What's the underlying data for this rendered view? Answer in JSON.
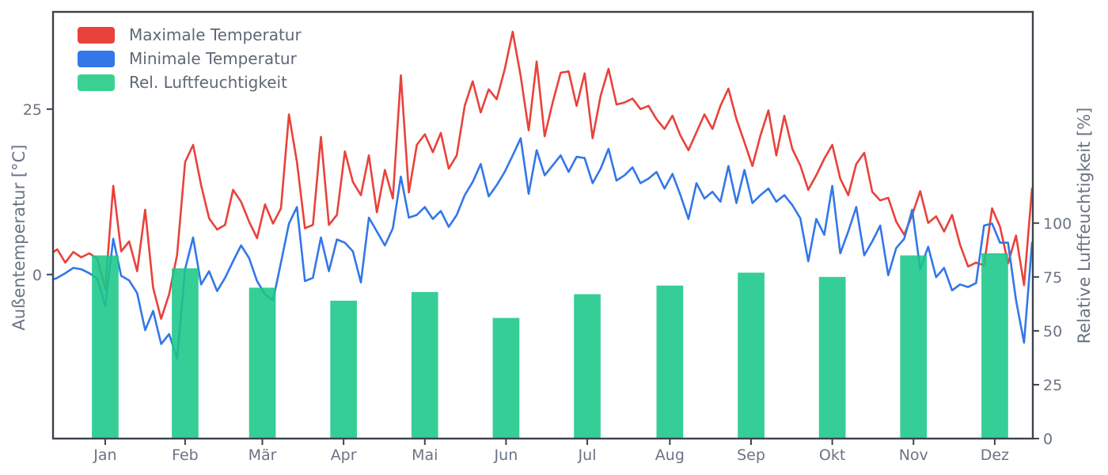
{
  "chart_data": {
    "type": "line+bar",
    "title": "",
    "x_axis": {
      "months": [
        "Jan",
        "Feb",
        "Mär",
        "Apr",
        "Mai",
        "Jun",
        "Jul",
        "Aug",
        "Sep",
        "Okt",
        "Nov",
        "Dez"
      ],
      "month_center_days": [
        15,
        45,
        74,
        104.5,
        135,
        165.5,
        196,
        227,
        257.5,
        288,
        318.5,
        349
      ],
      "xlim_days": [
        -4.6,
        363.3
      ],
      "unit": "day of year"
    },
    "left_axis": {
      "label": "Außentemperatur [°C]",
      "ticks": [
        0,
        25
      ],
      "ylim": [
        -24.8,
        39.7
      ]
    },
    "right_axis": {
      "label": "Relative Luftfeuchtigkeit [%]",
      "ticks": [
        0,
        25,
        50,
        75,
        100
      ],
      "ylim": [
        0,
        198
      ]
    },
    "legend": {
      "position": "upper-left",
      "entries": [
        "Maximale Temperatur",
        "Minimale Temperatur",
        "Rel. Luftfeuchtigkeit"
      ]
    },
    "series": [
      {
        "name": "Maximale Temperatur",
        "type": "line",
        "axis": "left",
        "color": "#e8423b",
        "start_day": -6,
        "day_step": 3,
        "values": [
          3.0,
          3.8,
          1.8,
          3.4,
          2.6,
          3.2,
          2.4,
          -2.2,
          13.4,
          3.5,
          5.0,
          0.5,
          9.8,
          -2.0,
          -6.7,
          -3.0,
          3.0,
          17.0,
          19.6,
          13.5,
          8.5,
          6.8,
          7.5,
          12.8,
          11.0,
          8.0,
          5.5,
          10.6,
          7.7,
          10.0,
          24.2,
          17.0,
          7.0,
          7.5,
          20.8,
          7.5,
          9.0,
          18.6,
          14.0,
          12.0,
          18.0,
          9.4,
          15.8,
          11.5,
          30.1,
          12.4,
          19.6,
          21.2,
          18.5,
          21.4,
          16.0,
          18.0,
          25.5,
          29.2,
          24.5,
          28.0,
          26.5,
          31.0,
          36.7,
          30.0,
          21.8,
          32.2,
          20.9,
          26.0,
          30.5,
          30.7,
          25.5,
          30.4,
          20.6,
          27.0,
          31.1,
          25.7,
          26.0,
          26.6,
          25.0,
          25.5,
          23.5,
          22.0,
          24.0,
          21.0,
          18.8,
          21.5,
          24.2,
          22.0,
          25.5,
          28.1,
          23.5,
          20.0,
          16.4,
          21.0,
          24.8,
          18.0,
          24.0,
          19.0,
          16.5,
          12.8,
          15.0,
          17.5,
          19.6,
          14.5,
          12.0,
          16.7,
          18.4,
          12.5,
          11.2,
          11.6,
          8.0,
          6.0,
          9.0,
          12.6,
          7.8,
          8.8,
          6.5,
          9.0,
          4.5,
          1.2,
          1.8,
          1.4,
          10.0,
          7.2,
          1.7,
          5.9,
          -1.6,
          13.0
        ]
      },
      {
        "name": "Minimale Temperatur",
        "type": "line",
        "axis": "left",
        "color": "#3377e8",
        "start_day": -6,
        "day_step": 3,
        "values": [
          -1.0,
          -0.5,
          0.2,
          1.0,
          0.8,
          0.2,
          -0.6,
          -4.8,
          5.4,
          -0.2,
          -0.9,
          -2.8,
          -8.4,
          -5.5,
          -10.5,
          -9.0,
          -12.7,
          0.8,
          5.6,
          -1.5,
          0.5,
          -2.5,
          -0.5,
          2.0,
          4.4,
          2.5,
          -1.0,
          -3.0,
          -3.9,
          1.8,
          7.7,
          10.2,
          -1.0,
          -0.5,
          5.6,
          0.5,
          5.3,
          4.8,
          3.5,
          -1.2,
          8.6,
          6.5,
          4.4,
          7.0,
          14.8,
          8.6,
          9.0,
          10.2,
          8.4,
          9.6,
          7.2,
          9.0,
          12.0,
          14.0,
          16.7,
          11.8,
          13.5,
          15.5,
          18.0,
          20.6,
          12.2,
          18.8,
          15.0,
          16.5,
          18.0,
          15.5,
          17.8,
          17.6,
          13.8,
          16.0,
          19.0,
          14.2,
          15.0,
          16.2,
          13.8,
          14.5,
          15.5,
          13.0,
          15.2,
          12.0,
          8.4,
          13.8,
          11.5,
          12.5,
          11.0,
          16.4,
          10.8,
          15.8,
          10.8,
          12.0,
          13.0,
          11.0,
          12.0,
          10.5,
          8.5,
          2.0,
          8.4,
          6.0,
          13.4,
          3.2,
          6.5,
          10.2,
          2.9,
          5.0,
          7.4,
          -0.1,
          4.0,
          5.4,
          9.8,
          0.8,
          4.2,
          -0.4,
          1.0,
          -2.4,
          -1.5,
          -1.9,
          -1.3,
          7.4,
          7.7,
          4.8,
          4.8,
          -3.9,
          -10.3,
          4.8
        ]
      },
      {
        "name": "Rel. Luftfeuchtigkeit",
        "type": "bar",
        "axis": "right",
        "color": "#1ac789",
        "bar_opacity": 0.88,
        "bar_width_days": 10,
        "center_days": [
          15,
          45,
          74,
          104.5,
          135,
          165.5,
          196,
          227,
          257.5,
          288,
          318.5,
          349
        ],
        "categories": [
          "Jan",
          "Feb",
          "Mär",
          "Apr",
          "Mai",
          "Jun",
          "Jul",
          "Aug",
          "Sep",
          "Okt",
          "Nov",
          "Dez"
        ],
        "values": [
          85,
          79,
          70,
          64,
          68,
          56,
          67,
          71,
          77,
          75,
          85,
          86
        ]
      }
    ]
  },
  "style": {
    "frame_color": "#3d434d",
    "text_color": "#6b7483",
    "background": "#ffffff"
  }
}
